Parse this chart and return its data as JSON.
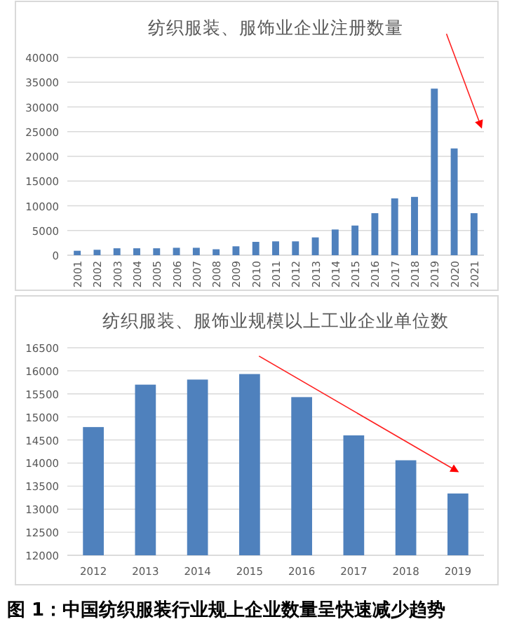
{
  "chart_data": [
    {
      "type": "bar",
      "title": "纺织服装、服饰业企业注册数量",
      "categories": [
        "2001",
        "2002",
        "2003",
        "2004",
        "2005",
        "2006",
        "2007",
        "2008",
        "2009",
        "2010",
        "2011",
        "2012",
        "2013",
        "2014",
        "2015",
        "2016",
        "2017",
        "2018",
        "2019",
        "2020",
        "2021"
      ],
      "values": [
        900,
        1100,
        1400,
        1400,
        1400,
        1500,
        1500,
        1200,
        1800,
        2700,
        2800,
        2800,
        3600,
        5200,
        6000,
        8500,
        11500,
        11800,
        33700,
        21600,
        8500
      ],
      "color": "#4f81bd",
      "ylim": [
        0,
        40000
      ],
      "yticks": [
        0,
        5000,
        10000,
        15000,
        20000,
        25000,
        30000,
        35000,
        40000
      ],
      "grid": "y"
    },
    {
      "type": "bar",
      "title": "纺织服装、服饰业规模以上工业企业单位数",
      "categories": [
        "2012",
        "2013",
        "2014",
        "2015",
        "2016",
        "2017",
        "2018",
        "2019"
      ],
      "values": [
        14780,
        15700,
        15810,
        15930,
        15430,
        14600,
        14060,
        13340
      ],
      "color": "#4f81bd",
      "ylim": [
        12000,
        16500
      ],
      "yticks": [
        12000,
        12500,
        13000,
        13500,
        14000,
        14500,
        15000,
        15500,
        16000,
        16500
      ],
      "grid": "y",
      "annotations": [
        "图 1：中国纺织服装行业规上企业数量呈快速减少趋势"
      ]
    }
  ]
}
